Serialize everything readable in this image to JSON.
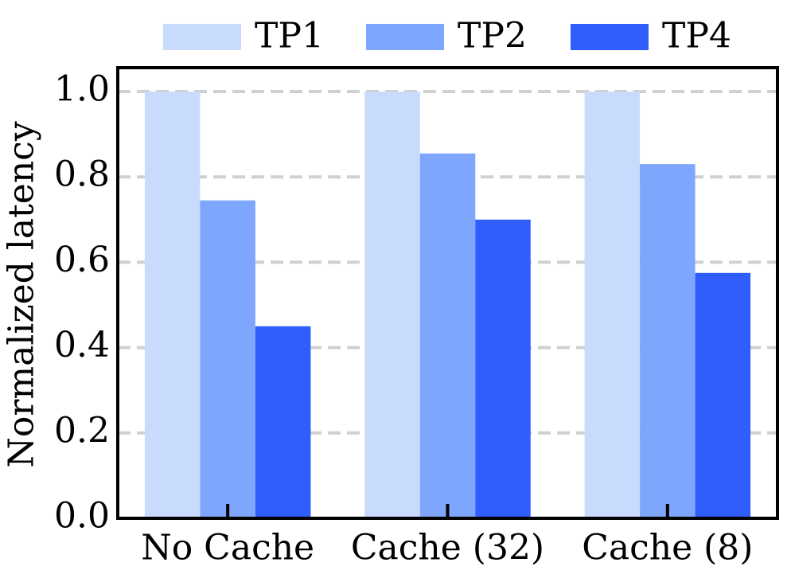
{
  "chart_data": {
    "type": "bar",
    "ylabel": "Normalized latency",
    "categories": [
      "No Cache",
      "Cache (32)",
      "Cache (8)"
    ],
    "series": [
      {
        "name": "TP1",
        "color": "#c9dbfc",
        "values": [
          1.0,
          1.0,
          1.0
        ]
      },
      {
        "name": "TP2",
        "color": "#7ea6fc",
        "values": [
          0.745,
          0.855,
          0.83
        ]
      },
      {
        "name": "TP4",
        "color": "#305efc",
        "values": [
          0.45,
          0.7,
          0.575
        ]
      }
    ],
    "ylim": [
      0,
      1.056
    ],
    "yticks": [
      {
        "value": 0,
        "label": "0.0"
      },
      0.2,
      0.4,
      0.6,
      0.8,
      {
        "value": 1,
        "label": "1.0"
      }
    ],
    "grid": true,
    "legend": "top"
  }
}
